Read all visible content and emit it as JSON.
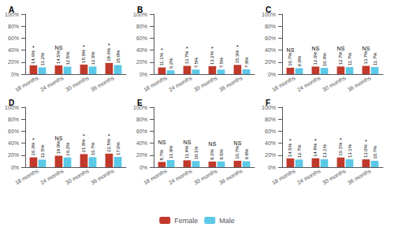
{
  "chart_data": [
    {
      "type": "bar",
      "title": "A",
      "categories": [
        "18 months",
        "24 months",
        "30 months",
        "36 months"
      ],
      "series": [
        {
          "name": "Female",
          "color": "#C0392B",
          "values": [
            14.6,
            14.5,
            15.9,
            18.6
          ],
          "value_labels": [
            "14.6%",
            "14.5%",
            "15.9%",
            "18.6%"
          ]
        },
        {
          "name": "Male",
          "color": "#5BC8E8",
          "values": [
            11.2,
            12.5,
            12.6,
            15.0
          ],
          "value_labels": [
            "11.2%",
            "12.5%",
            "12.6%",
            "15.0%"
          ]
        }
      ],
      "annotations": [
        "*",
        "NS",
        "*",
        "*"
      ],
      "ylim": [
        0,
        100
      ],
      "yticks": [
        {
          "value": 0,
          "label": "0%"
        },
        {
          "value": 20,
          "label": "20%"
        },
        {
          "value": 40,
          "label": "40%"
        },
        {
          "value": 60,
          "label": "60%"
        },
        {
          "value": 80,
          "label": "80%"
        },
        {
          "value": 100,
          "label": "100%"
        }
      ],
      "data_labels": true,
      "grid": false,
      "legend": "bottom"
    },
    {
      "type": "bar",
      "title": "B",
      "categories": [
        "18 months",
        "24 months",
        "30 months",
        "36 months"
      ],
      "series": [
        {
          "name": "Female",
          "color": "#C0392B",
          "values": [
            11.1,
            13.7,
            13.2,
            15.3
          ],
          "value_labels": [
            "11.1%",
            "13.7%",
            "13.2%",
            "15.3%"
          ]
        },
        {
          "name": "Male",
          "color": "#5BC8E8",
          "values": [
            6.2,
            7.5,
            7.5,
            7.9
          ],
          "value_labels": [
            "6.2%",
            "7.5%",
            "7.5%",
            "7.9%"
          ]
        }
      ],
      "annotations": [
        "*",
        "*",
        "*",
        "*"
      ],
      "ylim": [
        0,
        100
      ],
      "yticks": [
        {
          "value": 0,
          "label": "0%"
        },
        {
          "value": 20,
          "label": "20%"
        },
        {
          "value": 40,
          "label": "40%"
        },
        {
          "value": 60,
          "label": "60%"
        },
        {
          "value": 80,
          "label": "80%"
        },
        {
          "value": 100,
          "label": "100%"
        }
      ],
      "data_labels": true,
      "grid": false,
      "legend": "bottom"
    },
    {
      "type": "bar",
      "title": "C",
      "categories": [
        "18 months",
        "24 months",
        "30 months",
        "36 months"
      ],
      "series": [
        {
          "name": "Female",
          "color": "#C0392B",
          "values": [
            10.7,
            12.6,
            12.7,
            13.7
          ],
          "value_labels": [
            "10.7%",
            "12.6%",
            "12.7%",
            "13.7%"
          ]
        },
        {
          "name": "Male",
          "color": "#5BC8E8",
          "values": [
            9.9,
            10.4,
            11.7,
            11.7
          ],
          "value_labels": [
            "9.9%",
            "10.4%",
            "11.7%",
            "11.7%"
          ]
        }
      ],
      "annotations": [
        "NS",
        "NS",
        "NS",
        "NS"
      ],
      "ylim": [
        0,
        100
      ],
      "yticks": [
        {
          "value": 0,
          "label": "0%"
        },
        {
          "value": 20,
          "label": "20%"
        },
        {
          "value": 40,
          "label": "40%"
        },
        {
          "value": 60,
          "label": "60%"
        },
        {
          "value": 80,
          "label": "80%"
        },
        {
          "value": 100,
          "label": "100%"
        }
      ],
      "data_labels": true,
      "grid": false,
      "legend": "bottom"
    },
    {
      "type": "bar",
      "title": "D",
      "categories": [
        "18 months",
        "24 months",
        "30 months",
        "36 months"
      ],
      "series": [
        {
          "name": "Female",
          "color": "#C0392B",
          "values": [
            16.3,
            19.0,
            21.8,
            22.5
          ],
          "value_labels": [
            "16.3%",
            "19.0%",
            "21.8%",
            "22.5%"
          ]
        },
        {
          "name": "Male",
          "color": "#5BC8E8",
          "values": [
            12.5,
            16.2,
            16.7,
            17.0
          ],
          "value_labels": [
            "12.5%",
            "16.2%",
            "16.7%",
            "17.0%"
          ]
        }
      ],
      "annotations": [
        "*",
        "NS",
        "*",
        "*"
      ],
      "ylim": [
        0,
        100
      ],
      "yticks": [
        {
          "value": 0,
          "label": "0%"
        },
        {
          "value": 20,
          "label": "20%"
        },
        {
          "value": 40,
          "label": "40%"
        },
        {
          "value": 60,
          "label": "60%"
        },
        {
          "value": 80,
          "label": "80%"
        },
        {
          "value": 100,
          "label": "100%"
        }
      ],
      "data_labels": true,
      "grid": false,
      "legend": "bottom"
    },
    {
      "type": "bar",
      "title": "E",
      "categories": [
        "18 months",
        "24 months",
        "30 months",
        "36 months"
      ],
      "series": [
        {
          "name": "Female",
          "color": "#C0392B",
          "values": [
            8.7,
            11.4,
            9.3,
            10.7
          ],
          "value_labels": [
            "8.7%",
            "11.4%",
            "9.3%",
            "10.7%"
          ]
        },
        {
          "name": "Male",
          "color": "#5BC8E8",
          "values": [
            11.9,
            10.1,
            9.5,
            9.8
          ],
          "value_labels": [
            "11.9%",
            "10.1%",
            "9.5%",
            "9.8%"
          ]
        }
      ],
      "annotations": [
        "NS",
        "NS",
        "NS",
        "NS"
      ],
      "ylim": [
        0,
        100
      ],
      "yticks": [
        {
          "value": 0,
          "label": "0%"
        },
        {
          "value": 20,
          "label": "20%"
        },
        {
          "value": 40,
          "label": "40%"
        },
        {
          "value": 60,
          "label": "60%"
        },
        {
          "value": 80,
          "label": "80%"
        },
        {
          "value": 100,
          "label": "100%"
        }
      ],
      "data_labels": true,
      "grid": false,
      "legend": "bottom"
    },
    {
      "type": "bar",
      "title": "F",
      "categories": [
        "18 months",
        "24 months",
        "30 months",
        "36 months"
      ],
      "series": [
        {
          "name": "Female",
          "color": "#C0392B",
          "values": [
            14.5,
            14.8,
            16.1,
            13.0
          ],
          "value_labels": [
            "14.5%",
            "14.8%",
            "16.1%",
            "13.0%"
          ]
        },
        {
          "name": "Male",
          "color": "#5BC8E8",
          "values": [
            12.7,
            13.1,
            13.1,
            10.7
          ],
          "value_labels": [
            "12.7%",
            "13.1%",
            "13.1%",
            "10.7%"
          ]
        }
      ],
      "annotations": [
        "*",
        "*",
        "*",
        "*"
      ],
      "ylim": [
        0,
        100
      ],
      "yticks": [
        {
          "value": 0,
          "label": "0%"
        },
        {
          "value": 20,
          "label": "20%"
        },
        {
          "value": 40,
          "label": "40%"
        },
        {
          "value": 60,
          "label": "60%"
        },
        {
          "value": 80,
          "label": "80%"
        },
        {
          "value": 100,
          "label": "100%"
        }
      ],
      "data_labels": true,
      "grid": false,
      "legend": "bottom"
    }
  ]
}
